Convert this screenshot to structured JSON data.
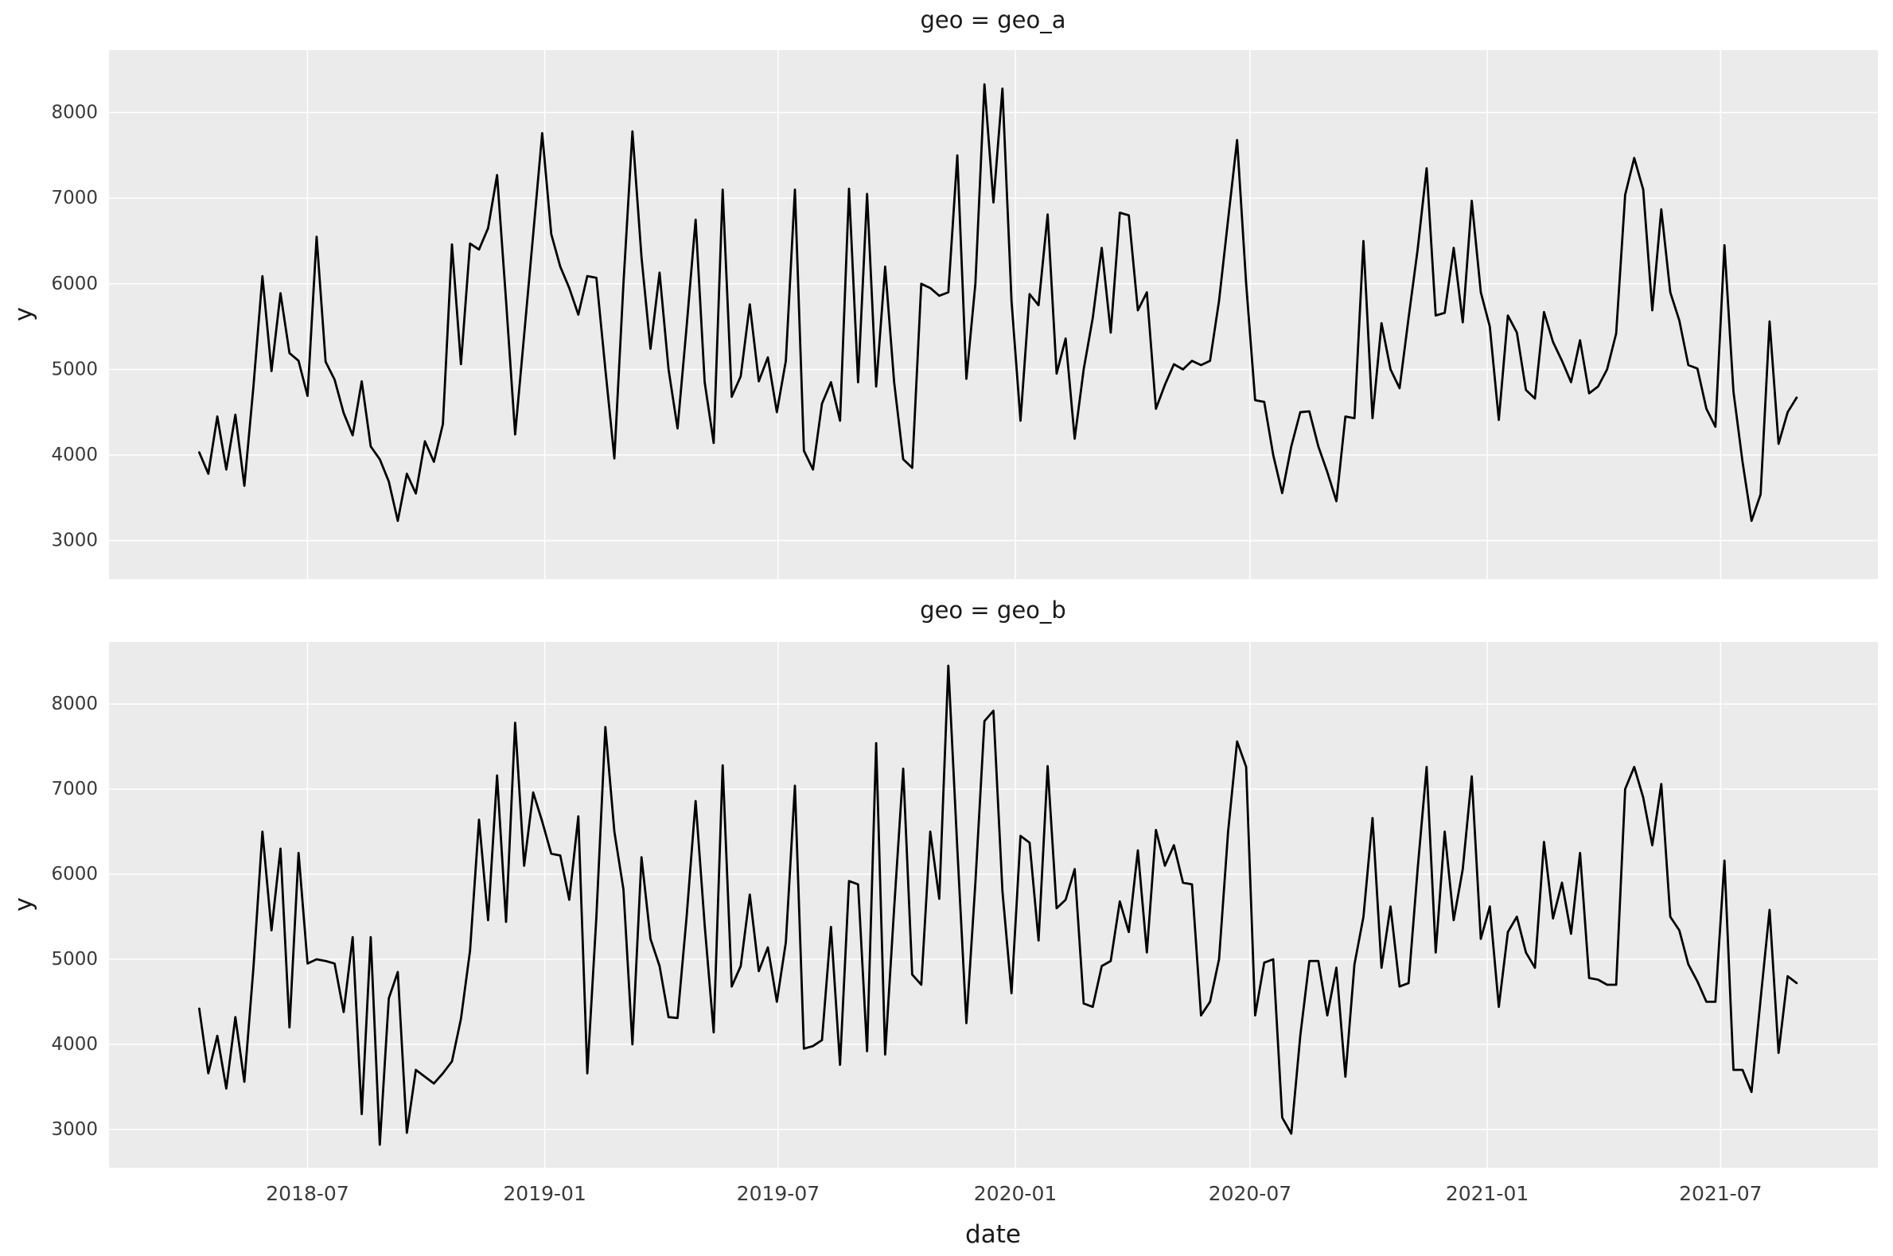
{
  "style": {
    "figure_bg": "#ffffff",
    "panel_bg": "#ebebeb",
    "grid_color": "#ffffff",
    "line_color": "#000000",
    "title_color": "#1a1a1a",
    "tick_color": "#3a3a3a",
    "axis_label_color": "#1a1a1a"
  },
  "chart_data": [
    {
      "type": "line",
      "title": "geo = geo_a",
      "facet_var": "geo",
      "facet_value": "geo_a",
      "xlabel": "date",
      "ylabel": "y",
      "grid": true,
      "legend_position": "none",
      "x_start": "2018-04-08",
      "x_step_days": 7,
      "x_domain": [
        "2018-01-28",
        "2021-10-31"
      ],
      "y_domain": [
        2550,
        8730
      ],
      "x_ticks": [
        {
          "label": "2018-07",
          "date": "2018-07-01"
        },
        {
          "label": "2019-01",
          "date": "2019-01-01"
        },
        {
          "label": "2019-07",
          "date": "2019-07-01"
        },
        {
          "label": "2020-01",
          "date": "2020-01-01"
        },
        {
          "label": "2020-07",
          "date": "2020-07-01"
        },
        {
          "label": "2021-01",
          "date": "2021-01-01"
        },
        {
          "label": "2021-07",
          "date": "2021-07-01"
        }
      ],
      "y_ticks": [
        3000,
        4000,
        5000,
        6000,
        7000,
        8000
      ],
      "series": [
        {
          "name": "y",
          "color": "#000000",
          "values": [
            4030,
            3780,
            4450,
            3830,
            4470,
            3640,
            4800,
            6090,
            4980,
            5890,
            5190,
            5100,
            4690,
            6550,
            5090,
            4880,
            4490,
            4230,
            4860,
            4100,
            3950,
            3690,
            3230,
            3780,
            3550,
            4160,
            3920,
            4360,
            6460,
            5060,
            6470,
            6400,
            6650,
            7270,
            5800,
            4240,
            5400,
            6580,
            7760,
            6580,
            6200,
            5950,
            5640,
            6090,
            6070,
            5000,
            3960,
            6000,
            7780,
            6310,
            5240,
            6130,
            5000,
            4310,
            5500,
            6750,
            4850,
            4140,
            7100,
            4680,
            4920,
            5760,
            4860,
            5140,
            4500,
            5100,
            7100,
            4050,
            3830,
            4600,
            4850,
            4400,
            7110,
            4850,
            7050,
            4800,
            6200,
            4850,
            3950,
            3850,
            6000,
            5950,
            5860,
            5900,
            7500,
            4890,
            6000,
            8330,
            6950,
            8280,
            5800,
            4400,
            5880,
            5750,
            6810,
            4950,
            5360,
            4190,
            5000,
            5600,
            6420,
            5430,
            6830,
            6800,
            5690,
            5900,
            4540,
            4820,
            5060,
            5000,
            5100,
            5050,
            5100,
            5800,
            6750,
            7680,
            6000,
            4640,
            4620,
            4000,
            3555,
            4100,
            4500,
            4510,
            4100,
            3800,
            3460,
            4450,
            4430,
            6500,
            4430,
            5540,
            5000,
            4780,
            5600,
            6400,
            7350,
            5630,
            5660,
            6420,
            5550,
            6970,
            5900,
            5500,
            4410,
            5630,
            5430,
            4760,
            4660,
            5670,
            5320,
            5100,
            4850,
            5340,
            4720,
            4800,
            5000,
            5420,
            7040,
            7470,
            7100,
            5690,
            6870,
            5900,
            5570,
            5050,
            5010,
            4540,
            4330,
            6450,
            4740,
            3920,
            3230,
            3540,
            5560,
            4130,
            4500,
            4670
          ]
        }
      ]
    },
    {
      "type": "line",
      "title": "geo = geo_b",
      "facet_var": "geo",
      "facet_value": "geo_b",
      "xlabel": "date",
      "ylabel": "y",
      "grid": true,
      "legend_position": "none",
      "x_start": "2018-04-08",
      "x_step_days": 7,
      "x_domain": [
        "2018-01-28",
        "2021-10-31"
      ],
      "y_domain": [
        2550,
        8730
      ],
      "x_ticks": [
        {
          "label": "2018-07",
          "date": "2018-07-01"
        },
        {
          "label": "2019-01",
          "date": "2019-01-01"
        },
        {
          "label": "2019-07",
          "date": "2019-07-01"
        },
        {
          "label": "2020-01",
          "date": "2020-01-01"
        },
        {
          "label": "2020-07",
          "date": "2020-07-01"
        },
        {
          "label": "2021-01",
          "date": "2021-01-01"
        },
        {
          "label": "2021-07",
          "date": "2021-07-01"
        }
      ],
      "y_ticks": [
        3000,
        4000,
        5000,
        6000,
        7000,
        8000
      ],
      "series": [
        {
          "name": "y",
          "color": "#000000",
          "values": [
            4420,
            3660,
            4100,
            3480,
            4320,
            3560,
            4900,
            6500,
            5340,
            6300,
            4200,
            6250,
            4950,
            5000,
            4980,
            4950,
            4380,
            5260,
            3180,
            5260,
            2820,
            4540,
            4850,
            2960,
            3700,
            3620,
            3540,
            3660,
            3800,
            4300,
            5100,
            6640,
            5460,
            7160,
            5440,
            7780,
            6100,
            6960,
            6620,
            6240,
            6220,
            5700,
            6680,
            3660,
            5500,
            7730,
            6500,
            5820,
            4000,
            6200,
            5240,
            4920,
            4320,
            4310,
            5500,
            6860,
            5400,
            4140,
            7280,
            4680,
            4920,
            5760,
            4860,
            5140,
            4500,
            5200,
            7040,
            3950,
            3980,
            4050,
            5380,
            3760,
            5920,
            5880,
            3920,
            7540,
            3880,
            5600,
            7240,
            4820,
            4700,
            6500,
            5710,
            8450,
            6300,
            4250,
            5900,
            7800,
            7920,
            5800,
            4600,
            6450,
            6370,
            5220,
            7270,
            5600,
            5700,
            6060,
            4480,
            4440,
            4920,
            4980,
            5680,
            5320,
            6280,
            5080,
            6520,
            6100,
            6340,
            5900,
            5880,
            4340,
            4500,
            5000,
            6500,
            7560,
            7260,
            4340,
            4960,
            5000,
            3140,
            2950,
            4100,
            4980,
            4980,
            4340,
            4900,
            3620,
            4940,
            5500,
            6660,
            4900,
            5620,
            4680,
            4720,
            6060,
            7260,
            5080,
            6500,
            5460,
            6060,
            7150,
            5240,
            5620,
            4440,
            5320,
            5500,
            5080,
            4900,
            6380,
            5480,
            5900,
            5300,
            6250,
            4780,
            4760,
            4700,
            4700,
            7000,
            7260,
            6900,
            6340,
            7060,
            5500,
            5340,
            4940,
            4740,
            4500,
            4500,
            6160,
            3700,
            3700,
            3440,
            4530,
            5580,
            3900,
            4800,
            4720
          ]
        }
      ]
    }
  ]
}
